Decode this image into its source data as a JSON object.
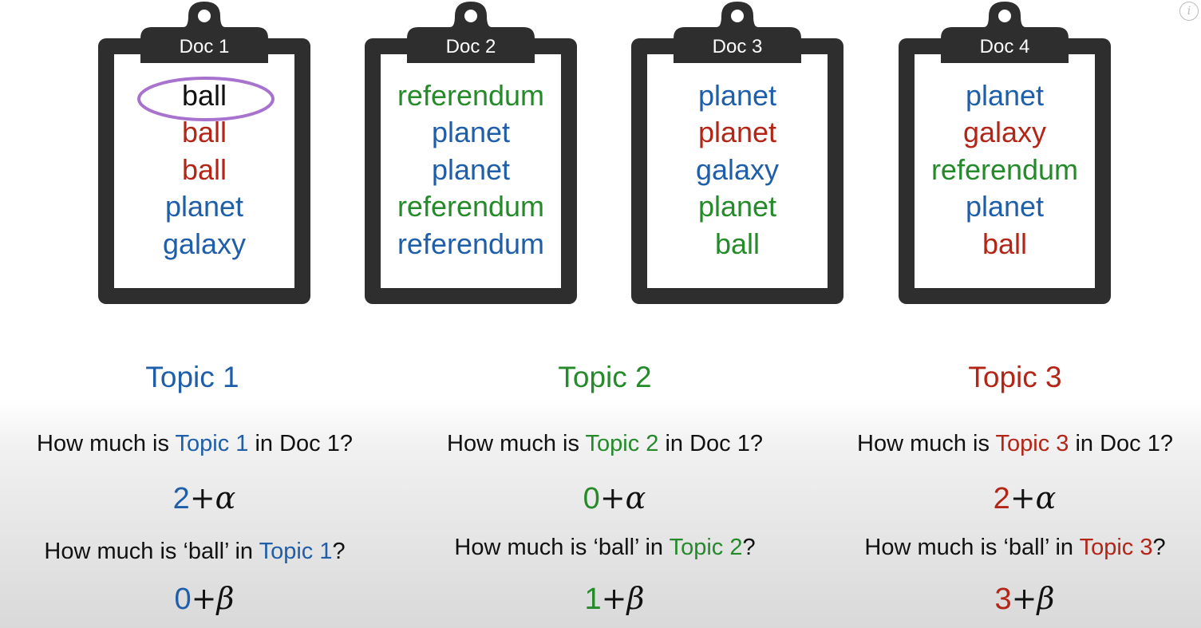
{
  "docs": [
    {
      "title": "Doc 1",
      "words": [
        {
          "text": "ball",
          "color": "#111111",
          "highlighted": true
        },
        {
          "text": "ball",
          "color": "#b32516"
        },
        {
          "text": "ball",
          "color": "#b32516"
        },
        {
          "text": "planet",
          "color": "#1f5ea8"
        },
        {
          "text": "galaxy",
          "color": "#1f5ea8"
        }
      ]
    },
    {
      "title": "Doc 2",
      "words": [
        {
          "text": "referendum",
          "color": "#248a2a"
        },
        {
          "text": "planet",
          "color": "#1f5ea8"
        },
        {
          "text": "planet",
          "color": "#1f5ea8"
        },
        {
          "text": "referendum",
          "color": "#248a2a"
        },
        {
          "text": "referendum",
          "color": "#1f5ea8"
        }
      ]
    },
    {
      "title": "Doc 3",
      "words": [
        {
          "text": "planet",
          "color": "#1f5ea8"
        },
        {
          "text": "planet",
          "color": "#b32516"
        },
        {
          "text": "galaxy",
          "color": "#1f5ea8"
        },
        {
          "text": "planet",
          "color": "#248a2a"
        },
        {
          "text": "ball",
          "color": "#248a2a"
        }
      ]
    },
    {
      "title": "Doc 4",
      "words": [
        {
          "text": "planet",
          "color": "#1f5ea8"
        },
        {
          "text": "galaxy",
          "color": "#b32516"
        },
        {
          "text": "referendum",
          "color": "#248a2a"
        },
        {
          "text": "planet",
          "color": "#1f5ea8"
        },
        {
          "text": "ball",
          "color": "#b32516"
        }
      ]
    }
  ],
  "topics": [
    {
      "label": "Topic 1",
      "color": "#1f5ea8",
      "q1": {
        "prefix": "How much is ",
        "topic": "Topic 1",
        "suffix": " in Doc 1?"
      },
      "e1": {
        "num": "2",
        "op": "+",
        "sym": "α"
      },
      "q2": {
        "prefix": "How much is ‘ball’ in ",
        "topic": "Topic 1",
        "suffix": "?"
      },
      "e2": {
        "num": "0",
        "op": "+",
        "sym": "β"
      }
    },
    {
      "label": "Topic 2",
      "color": "#248a2a",
      "q1": {
        "prefix": "How much is ",
        "topic": "Topic 2",
        "suffix": " in Doc 1?"
      },
      "e1": {
        "num": "0",
        "op": "+",
        "sym": "α"
      },
      "q2": {
        "prefix": "How much is ‘ball’ in ",
        "topic": "Topic 2",
        "suffix": "?"
      },
      "e2": {
        "num": "1",
        "op": "+",
        "sym": "β"
      }
    },
    {
      "label": "Topic 3",
      "color": "#b32516",
      "q1": {
        "prefix": "How much is ",
        "topic": "Topic 3",
        "suffix": " in Doc 1?"
      },
      "e1": {
        "num": "2",
        "op": "+",
        "sym": "α"
      },
      "q2": {
        "prefix": "How much is ‘ball’ in ",
        "topic": "Topic 3",
        "suffix": "?"
      },
      "e2": {
        "num": "3",
        "op": "+",
        "sym": "β"
      }
    }
  ],
  "colors": {
    "clipboard": "#2e2e2e",
    "highlight_ring": "#a872cf"
  },
  "icons": {
    "info": "info-icon"
  },
  "info_glyph": "i"
}
